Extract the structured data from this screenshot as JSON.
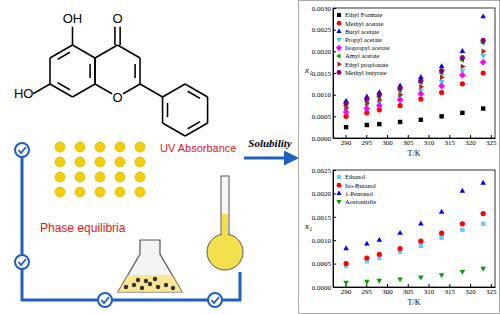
{
  "chart_data": [
    {
      "type": "scatter",
      "x_label": "T/K",
      "y_label": "x₁",
      "legend": "upper left",
      "x": [
        290.15,
        295.15,
        298.15,
        303.15,
        308.15,
        313.15,
        318.15,
        323.15
      ],
      "xlim": [
        287,
        326
      ],
      "xticks": [
        290,
        295,
        300,
        305,
        310,
        315,
        320,
        325
      ],
      "ylim": [
        0,
        0.003
      ],
      "yticks": [
        {
          "value": 0,
          "label": "0.0000"
        },
        {
          "value": 0.0005,
          "label": "0.0005"
        },
        {
          "value": 0.001,
          "label": "0.0010"
        },
        {
          "value": 0.0015,
          "label": "0.0015"
        },
        {
          "value": 0.002,
          "label": "0.0020"
        },
        {
          "value": 0.0025,
          "label": "0.0025"
        },
        {
          "value": 0.003,
          "label": "0.0030"
        }
      ],
      "series": [
        {
          "name": "Ethyl Formate",
          "color": "#000000",
          "marker": "square",
          "values": [
            0.00025,
            0.0003,
            0.00032,
            0.00037,
            0.00042,
            0.0005,
            0.00058,
            0.00068
          ]
        },
        {
          "name": "Methyl acetate",
          "color": "#ff0000",
          "marker": "circle",
          "values": [
            0.0005,
            0.00058,
            0.00065,
            0.00075,
            0.0009,
            0.00105,
            0.00125,
            0.0015
          ]
        },
        {
          "name": "Butyl acetate",
          "color": "#0000ff",
          "marker": "triangle",
          "values": [
            0.00085,
            0.00095,
            0.00105,
            0.0012,
            0.0014,
            0.00165,
            0.002,
            0.0028
          ]
        },
        {
          "name": "Propyl acetate",
          "color": "#33ccff",
          "marker": "triangle-down",
          "values": [
            0.00065,
            0.00075,
            0.00082,
            0.00095,
            0.0011,
            0.0013,
            0.00155,
            0.0019
          ]
        },
        {
          "name": "Isopropyl acetate",
          "color": "#ff00ff",
          "marker": "diamond",
          "values": [
            0.0006,
            0.00068,
            0.00075,
            0.00088,
            0.00102,
            0.0012,
            0.00145,
            0.00175
          ]
        },
        {
          "name": "Amyl acetate",
          "color": "#00a000",
          "marker": "triangle-left",
          "values": [
            0.00075,
            0.00085,
            0.00095,
            0.0011,
            0.00128,
            0.0015,
            0.0018,
            0.0022
          ]
        },
        {
          "name": "Ethyl propionate",
          "color": "#b22222",
          "marker": "triangle-right",
          "values": [
            0.0007,
            0.0008,
            0.00088,
            0.001,
            0.00118,
            0.0014,
            0.00165,
            0.002
          ]
        },
        {
          "name": "Methyl butyrate",
          "color": "#800080",
          "marker": "hexagon",
          "values": [
            0.0008,
            0.0009,
            0.001,
            0.00115,
            0.00132,
            0.00155,
            0.00185,
            0.00225
          ]
        }
      ]
    },
    {
      "type": "scatter",
      "x_label": "T/K",
      "y_label": "x₁",
      "legend": "upper left",
      "x": [
        290.15,
        295.15,
        298.15,
        303.15,
        308.15,
        313.15,
        318.15,
        323.15
      ],
      "xlim": [
        287,
        326
      ],
      "xticks": [
        290,
        295,
        300,
        305,
        310,
        315,
        320,
        325
      ],
      "ylim": [
        0,
        0.0025
      ],
      "yticks": [
        {
          "value": 0,
          "label": "0.0000"
        },
        {
          "value": 0.0005,
          "label": "0.0005"
        },
        {
          "value": 0.001,
          "label": "0.0010"
        },
        {
          "value": 0.0015,
          "label": "0.0015"
        },
        {
          "value": 0.002,
          "label": "0.0020"
        },
        {
          "value": 0.0025,
          "label": "0.0025"
        }
      ],
      "series": [
        {
          "name": "Ethanol",
          "color": "#66ccff",
          "marker": "square",
          "values": [
            0.00045,
            0.00055,
            0.00062,
            0.00075,
            0.00088,
            0.00105,
            0.00122,
            0.00135
          ]
        },
        {
          "name": "Iso-Butanol",
          "color": "#ff0000",
          "marker": "circle",
          "values": [
            0.0005,
            0.00062,
            0.0007,
            0.00082,
            0.00098,
            0.00115,
            0.00135,
            0.00157
          ]
        },
        {
          "name": "1-Pentanol",
          "color": "#0000ff",
          "marker": "triangle",
          "values": [
            0.00082,
            0.00092,
            0.001,
            0.00115,
            0.00135,
            0.0016,
            0.00205,
            0.00222
          ]
        },
        {
          "name": "Acetonitrile",
          "color": "#00a000",
          "marker": "triangle-down",
          "values": [
            0.0001,
            0.00012,
            0.00014,
            0.00017,
            0.00021,
            0.00026,
            0.00033,
            0.0004
          ]
        }
      ]
    }
  ],
  "diagram": {
    "molecule_labels": [
      "OH",
      "HO",
      "O",
      "O"
    ],
    "phase_label": "Phase equilibria",
    "uv_label": "UV Absorbance",
    "arrow_label": "Solubility"
  }
}
